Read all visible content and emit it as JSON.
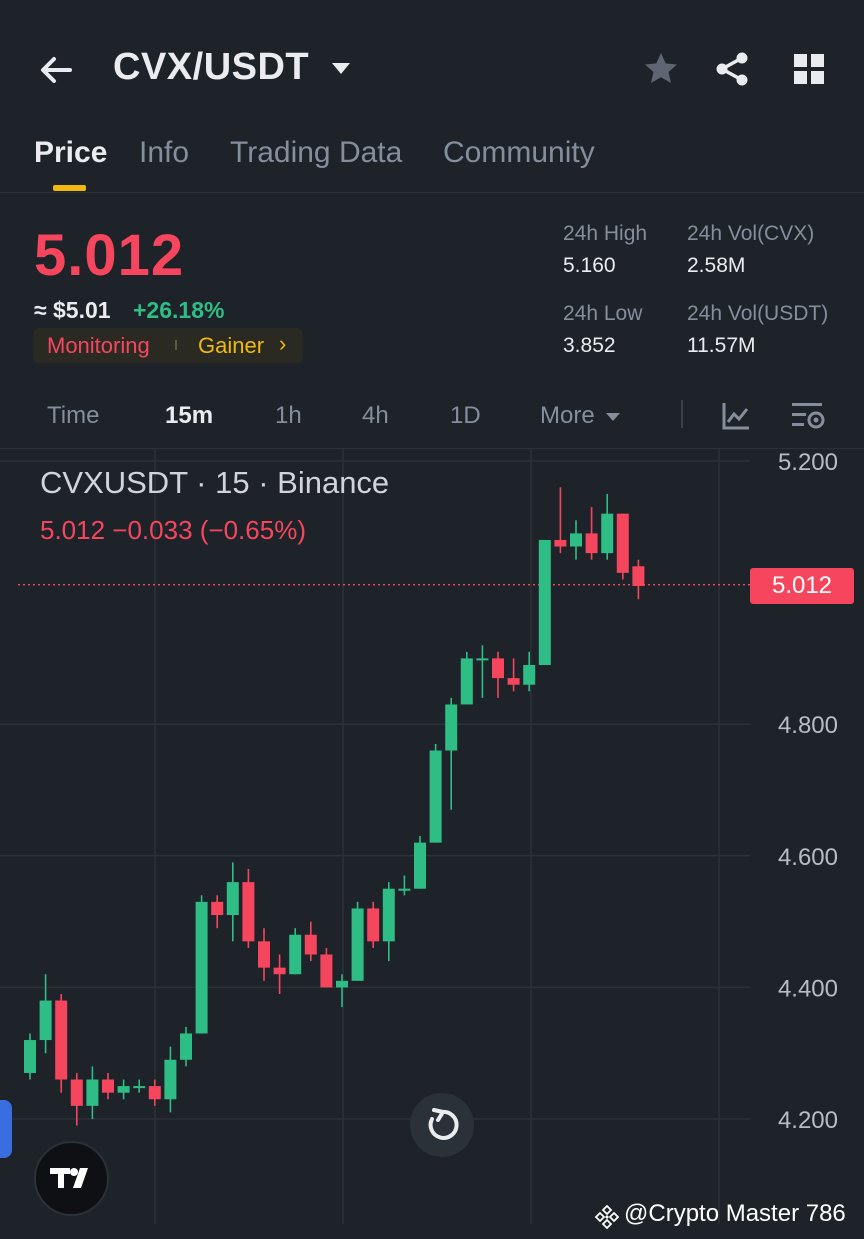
{
  "header": {
    "pair": "CVX/USDT",
    "icons": [
      "back-arrow-icon",
      "dropdown-caret-icon",
      "star-icon",
      "share-icon",
      "grid-menu-icon"
    ]
  },
  "tabs": [
    {
      "label": "Price",
      "active": true
    },
    {
      "label": "Info",
      "active": false
    },
    {
      "label": "Trading Data",
      "active": false
    },
    {
      "label": "Community",
      "active": false
    }
  ],
  "ticker": {
    "last_price": "5.012",
    "usd_price": "≈ $5.01",
    "change_pct": "+26.18%",
    "tags": {
      "monitoring": "Monitoring",
      "gainer": "Gainer",
      "chevron": "›"
    }
  },
  "stats": {
    "high_label": "24h High",
    "high_value": "5.160",
    "low_label": "24h Low",
    "low_value": "3.852",
    "vol_base_label": "24h Vol(CVX)",
    "vol_base_value": "2.58M",
    "vol_quote_label": "24h Vol(USDT)",
    "vol_quote_value": "11.57M"
  },
  "timeframes": {
    "items": [
      "Time",
      "15m",
      "1h",
      "4h",
      "1D",
      "More"
    ],
    "active": "15m"
  },
  "colors": {
    "up": "#2ebd85",
    "down": "#f6465d",
    "accent": "#f0b90b",
    "background": "#1e2329"
  },
  "chart_panel": {
    "title": "CVXUSDT · 15 · Binance",
    "ohlc_summary": "5.012  −0.033 (−0.65%)",
    "last_price_tag": "5.012"
  },
  "chart_data": {
    "type": "candlestick",
    "symbol": "CVXUSDT",
    "interval": "15",
    "exchange": "Binance",
    "y_ticks": [
      "5.200",
      "4.800",
      "4.600",
      "4.400",
      "4.200"
    ],
    "ylim": [
      4.12,
      5.24
    ],
    "grid": true,
    "last_price": 5.012,
    "candles": [
      {
        "o": 4.27,
        "h": 4.33,
        "l": 4.26,
        "c": 4.32
      },
      {
        "o": 4.32,
        "h": 4.42,
        "l": 4.3,
        "c": 4.38
      },
      {
        "o": 4.38,
        "h": 4.39,
        "l": 4.24,
        "c": 4.26
      },
      {
        "o": 4.26,
        "h": 4.27,
        "l": 4.19,
        "c": 4.22
      },
      {
        "o": 4.22,
        "h": 4.28,
        "l": 4.2,
        "c": 4.26
      },
      {
        "o": 4.26,
        "h": 4.27,
        "l": 4.23,
        "c": 4.24
      },
      {
        "o": 4.24,
        "h": 4.26,
        "l": 4.23,
        "c": 4.25
      },
      {
        "o": 4.25,
        "h": 4.26,
        "l": 4.24,
        "c": 4.25
      },
      {
        "o": 4.25,
        "h": 4.26,
        "l": 4.22,
        "c": 4.23
      },
      {
        "o": 4.23,
        "h": 4.31,
        "l": 4.21,
        "c": 4.29
      },
      {
        "o": 4.29,
        "h": 4.34,
        "l": 4.28,
        "c": 4.33
      },
      {
        "o": 4.33,
        "h": 4.54,
        "l": 4.33,
        "c": 4.53
      },
      {
        "o": 4.53,
        "h": 4.54,
        "l": 4.49,
        "c": 4.51
      },
      {
        "o": 4.51,
        "h": 4.59,
        "l": 4.47,
        "c": 4.56
      },
      {
        "o": 4.56,
        "h": 4.58,
        "l": 4.46,
        "c": 4.47
      },
      {
        "o": 4.47,
        "h": 4.49,
        "l": 4.41,
        "c": 4.43
      },
      {
        "o": 4.43,
        "h": 4.45,
        "l": 4.39,
        "c": 4.42
      },
      {
        "o": 4.42,
        "h": 4.49,
        "l": 4.42,
        "c": 4.48
      },
      {
        "o": 4.48,
        "h": 4.5,
        "l": 4.44,
        "c": 4.45
      },
      {
        "o": 4.45,
        "h": 4.46,
        "l": 4.4,
        "c": 4.4
      },
      {
        "o": 4.4,
        "h": 4.42,
        "l": 4.37,
        "c": 4.41
      },
      {
        "o": 4.41,
        "h": 4.53,
        "l": 4.41,
        "c": 4.52
      },
      {
        "o": 4.52,
        "h": 4.53,
        "l": 4.46,
        "c": 4.47
      },
      {
        "o": 4.47,
        "h": 4.56,
        "l": 4.44,
        "c": 4.55
      },
      {
        "o": 4.55,
        "h": 4.57,
        "l": 4.54,
        "c": 4.55
      },
      {
        "o": 4.55,
        "h": 4.63,
        "l": 4.55,
        "c": 4.62
      },
      {
        "o": 4.62,
        "h": 4.77,
        "l": 4.62,
        "c": 4.76
      },
      {
        "o": 4.76,
        "h": 4.84,
        "l": 4.67,
        "c": 4.83
      },
      {
        "o": 4.83,
        "h": 4.91,
        "l": 4.83,
        "c": 4.9
      },
      {
        "o": 4.9,
        "h": 4.92,
        "l": 4.84,
        "c": 4.9
      },
      {
        "o": 4.9,
        "h": 4.91,
        "l": 4.84,
        "c": 4.87
      },
      {
        "o": 4.87,
        "h": 4.9,
        "l": 4.85,
        "c": 4.86
      },
      {
        "o": 4.86,
        "h": 4.91,
        "l": 4.85,
        "c": 4.89
      },
      {
        "o": 4.89,
        "h": 5.08,
        "l": 4.89,
        "c": 5.08
      },
      {
        "o": 5.08,
        "h": 5.16,
        "l": 5.06,
        "c": 5.07
      },
      {
        "o": 5.07,
        "h": 5.11,
        "l": 5.05,
        "c": 5.09
      },
      {
        "o": 5.09,
        "h": 5.13,
        "l": 5.05,
        "c": 5.06
      },
      {
        "o": 5.06,
        "h": 5.15,
        "l": 5.05,
        "c": 5.12
      },
      {
        "o": 5.12,
        "h": 5.12,
        "l": 5.02,
        "c": 5.03
      },
      {
        "o": 5.04,
        "h": 5.05,
        "l": 4.99,
        "c": 5.01
      }
    ]
  },
  "watermark": "@Crypto Master 786"
}
